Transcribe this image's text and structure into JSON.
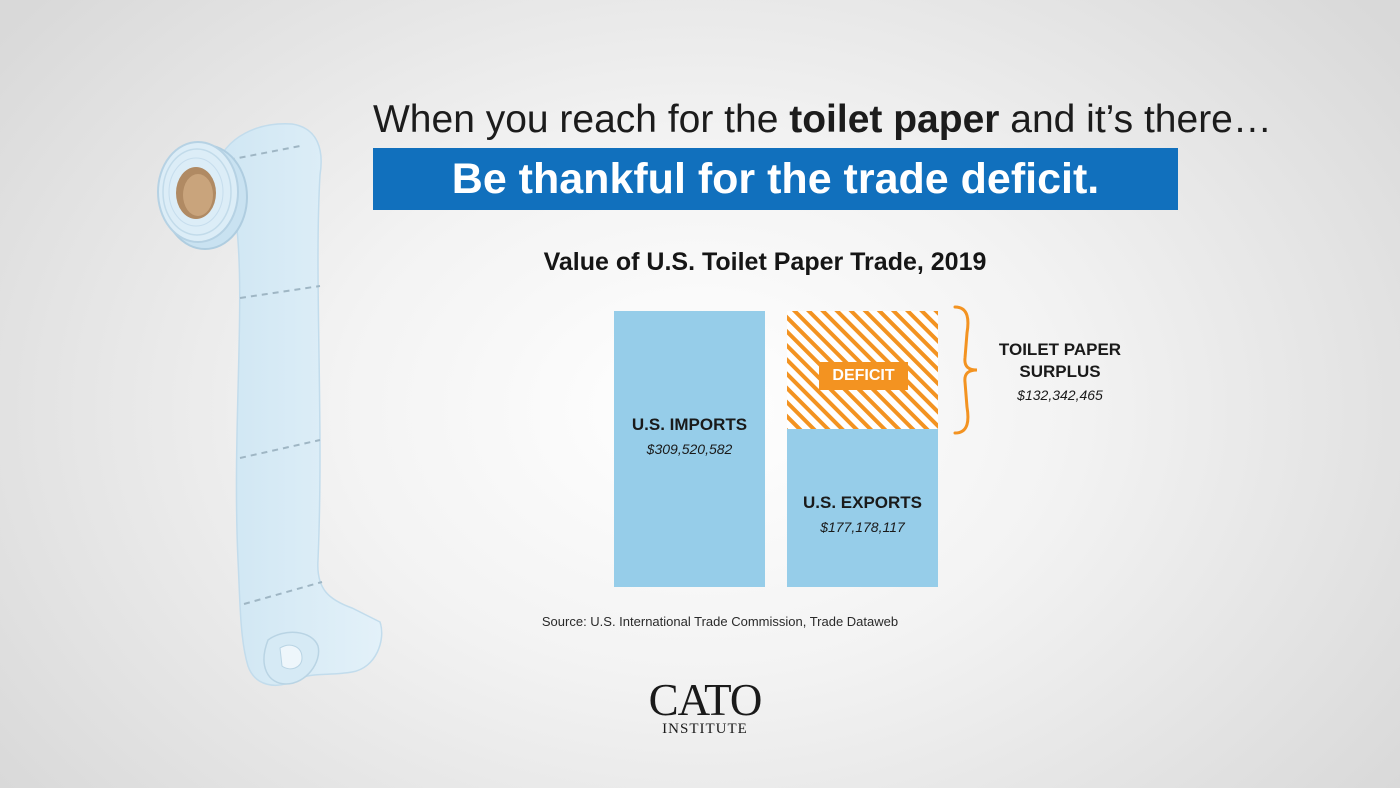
{
  "headline": {
    "before": "When you reach for the ",
    "bold": "toilet paper",
    "after": " and it’s there…"
  },
  "banner": "Be thankful for the trade deficit.",
  "chart_data": {
    "type": "bar",
    "title": "Value of U.S. Toilet Paper Trade, 2019",
    "categories": [
      "U.S. IMPORTS",
      "U.S. EXPORTS"
    ],
    "values": [
      309520582,
      177178117
    ],
    "value_labels": [
      "$309,520,582",
      "$177,178,117"
    ],
    "deficit": {
      "tag": "DEFICIT",
      "label": "TOILET PAPER SURPLUS",
      "value": 132342465,
      "value_label": "$132,342,465"
    },
    "colors": {
      "bar": "#96cde9",
      "deficit": "#f39321",
      "banner": "#1170bd"
    },
    "xlabel": "",
    "ylabel": "",
    "grid": false,
    "legend": "none"
  },
  "source": "Source: U.S. International Trade Commission, Trade Dataweb",
  "logo": {
    "main": "CATO",
    "sub": "INSTITUTE"
  },
  "icons": [
    "toilet-paper-roll-icon"
  ]
}
